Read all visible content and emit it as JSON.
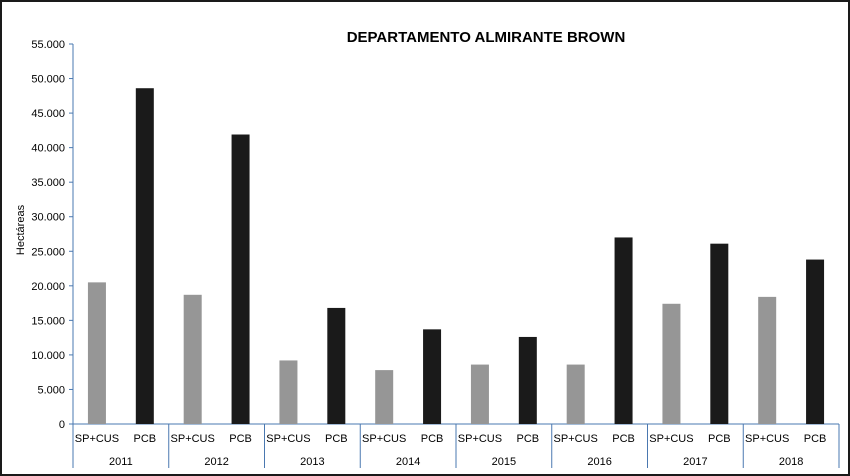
{
  "chart_data": {
    "type": "bar",
    "title": "DEPARTAMENTO ALMIRANTE  BROWN",
    "ylabel": "Hectáreas",
    "xlabel": "",
    "ylim": [
      0,
      55000
    ],
    "y_ticks": [
      {
        "value": 0,
        "label": "0"
      },
      {
        "value": 5000,
        "label": "5.000"
      },
      {
        "value": 10000,
        "label": "10.000"
      },
      {
        "value": 15000,
        "label": "15.000"
      },
      {
        "value": 20000,
        "label": "20.000"
      },
      {
        "value": 25000,
        "label": "25.000"
      },
      {
        "value": 30000,
        "label": "30.000"
      },
      {
        "value": 35000,
        "label": "35.000"
      },
      {
        "value": 40000,
        "label": "40.000"
      },
      {
        "value": 45000,
        "label": "45.000"
      },
      {
        "value": 50000,
        "label": "50.000"
      },
      {
        "value": 55000,
        "label": "55.000"
      }
    ],
    "groups": [
      "2011",
      "2012",
      "2013",
      "2014",
      "2015",
      "2016",
      "2017",
      "2018"
    ],
    "series": [
      {
        "name": "SP+CUS",
        "color": "#969696",
        "values": [
          20500,
          18700,
          9200,
          7800,
          8600,
          8600,
          17400,
          18400
        ]
      },
      {
        "name": "PCB",
        "color": "#1a1a1a",
        "values": [
          48600,
          41900,
          16800,
          13700,
          12600,
          27000,
          26100,
          23800
        ]
      }
    ],
    "grid": false,
    "legend": "none"
  }
}
